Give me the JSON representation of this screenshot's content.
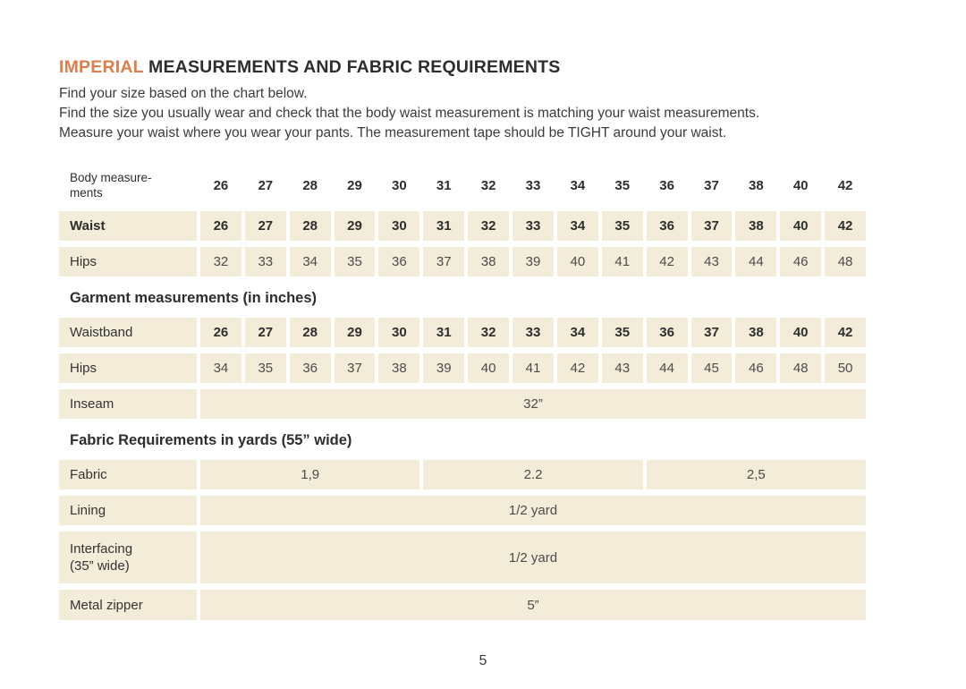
{
  "title": {
    "highlight": "IMPERIAL",
    "rest": "MEASUREMENTS AND FABRIC REQUIREMENTS"
  },
  "intro": {
    "line1": "Find your size based on the chart below.",
    "line2": "Find the size you usually wear and check that the body waist measurement is matching your waist measurements.",
    "line3": "Measure your waist where you wear your pants. The measurement tape should be TIGHT around your waist."
  },
  "body_table": {
    "header_line1": "Body measure-",
    "header_line2": "ments",
    "sizes": [
      "26",
      "27",
      "28",
      "29",
      "30",
      "31",
      "32",
      "33",
      "34",
      "35",
      "36",
      "37",
      "38",
      "40",
      "42"
    ],
    "waist": {
      "label": "Waist",
      "values": [
        "26",
        "27",
        "28",
        "29",
        "30",
        "31",
        "32",
        "33",
        "34",
        "35",
        "36",
        "37",
        "38",
        "40",
        "42"
      ]
    },
    "hips": {
      "label": "Hips",
      "values": [
        "32",
        "33",
        "34",
        "35",
        "36",
        "37",
        "38",
        "39",
        "40",
        "41",
        "42",
        "43",
        "44",
        "46",
        "48"
      ]
    }
  },
  "garment": {
    "title": "Garment measurements (in inches)",
    "waistband": {
      "label": "Waistband",
      "values": [
        "26",
        "27",
        "28",
        "29",
        "30",
        "31",
        "32",
        "33",
        "34",
        "35",
        "36",
        "37",
        "38",
        "40",
        "42"
      ]
    },
    "hips": {
      "label": "Hips",
      "values": [
        "34",
        "35",
        "36",
        "37",
        "38",
        "39",
        "40",
        "41",
        "42",
        "43",
        "44",
        "45",
        "46",
        "48",
        "50"
      ]
    },
    "inseam": {
      "label": "Inseam",
      "value": "32”"
    }
  },
  "fabric": {
    "title": "Fabric Requirements in yards (55” wide)",
    "fabric_row": {
      "label": "Fabric",
      "values": [
        "1,9",
        "2.2",
        "2,5"
      ]
    },
    "lining": {
      "label": "Lining",
      "value": "1/2 yard"
    },
    "interfacing": {
      "label_line1": "Interfacing",
      "label_line2": "(35” wide)",
      "value": "1/2 yard"
    },
    "zipper": {
      "label": "Metal zipper",
      "value": "5”"
    }
  },
  "footer": {
    "page_number": "5"
  },
  "colors": {
    "accent": "#DD7E4B",
    "cell_bg": "#F3ECD9",
    "text": "#2E2E2E"
  }
}
